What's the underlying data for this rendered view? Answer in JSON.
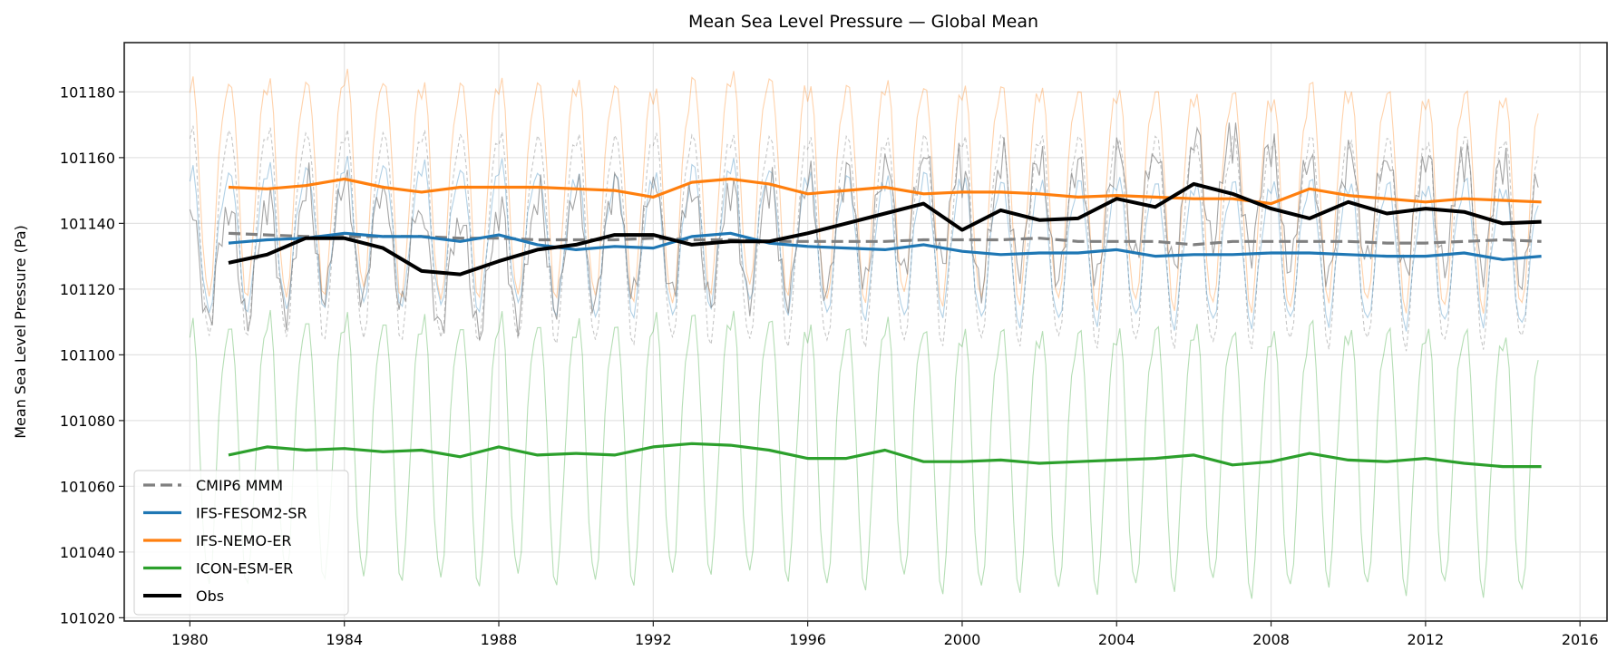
{
  "chart_data": {
    "type": "line",
    "title": "Mean Sea Level Pressure — Global Mean",
    "xlabel": "",
    "ylabel": "Mean Sea Level Pressure (Pa)",
    "xlim": [
      1978.3,
      2016.7
    ],
    "ylim": [
      101019,
      101195
    ],
    "xticks": [
      1980,
      1984,
      1988,
      1992,
      1996,
      2000,
      2004,
      2008,
      2012,
      2016
    ],
    "yticks": [
      101020,
      101040,
      101060,
      101080,
      101100,
      101120,
      101140,
      101160,
      101180
    ],
    "grid": true,
    "legend_position": "lower-left",
    "annual_years": [
      1981,
      1982,
      1983,
      1984,
      1985,
      1986,
      1987,
      1988,
      1989,
      1990,
      1991,
      1992,
      1993,
      1994,
      1995,
      1996,
      1997,
      1998,
      1999,
      2000,
      2001,
      2002,
      2003,
      2004,
      2005,
      2006,
      2007,
      2008,
      2009,
      2010,
      2011,
      2012,
      2013,
      2014,
      2015
    ],
    "monthly_start_year": 1980,
    "monthly_end_year": 2014,
    "series": [
      {
        "name": "CMIP6 MMM",
        "color": "#808080",
        "style": "dashed",
        "annual": [
          101137,
          101136.5,
          101136,
          101136,
          101136,
          101136,
          101135.5,
          101135.5,
          101135,
          101135,
          101135,
          101135.5,
          101135,
          101135,
          101134.5,
          101134.5,
          101134.5,
          101134.5,
          101135,
          101135,
          101135,
          101135.5,
          101134.5,
          101134.5,
          101134.5,
          101133.5,
          101134.5,
          101134.5,
          101134.5,
          101134.5,
          101134,
          101134,
          101134.5,
          101135,
          101134.5
        ],
        "monthly_seasonal_cycle": [
          30,
          31,
          22,
          4,
          -15,
          -28,
          -31,
          -24,
          -8,
          8,
          20,
          27
        ]
      },
      {
        "name": "IFS-FESOM2-SR",
        "color": "#1f77b4",
        "style": "solid",
        "annual": [
          101134,
          101135,
          101135.5,
          101137,
          101136,
          101136,
          101134.5,
          101136.5,
          101133.5,
          101132,
          101133,
          101132.5,
          101136,
          101137,
          101134,
          101133,
          101132.5,
          101132,
          101133.5,
          101131.5,
          101130.5,
          101131,
          101131,
          101132,
          101130,
          101130.5,
          101130.5,
          101131,
          101131,
          101130.5,
          101130,
          101130,
          101131,
          101129,
          101130
        ],
        "monthly_seasonal_cycle": [
          20,
          22,
          14,
          2,
          -10,
          -18,
          -21,
          -16,
          -5,
          5,
          12,
          18
        ]
      },
      {
        "name": "IFS-NEMO-ER",
        "color": "#ff7f0e",
        "style": "solid",
        "annual": [
          101151,
          101150.5,
          101151.5,
          101153.5,
          101151,
          101149.5,
          101151,
          101151,
          101151,
          101150.5,
          101150,
          101148,
          101152.5,
          101153.5,
          101152,
          101149,
          101150,
          101151,
          101149,
          101149.5,
          101149.5,
          101149,
          101148,
          101148.5,
          101148,
          101147.5,
          101147.5,
          101146,
          101150.5,
          101148.5,
          101147.5,
          101146.5,
          101147.5,
          101147,
          101146.5
        ],
        "monthly_seasonal_cycle": [
          30,
          32,
          22,
          3,
          -17,
          -30,
          -33,
          -25,
          -9,
          8,
          21,
          28
        ]
      },
      {
        "name": "ICON-ESM-ER",
        "color": "#2ca02c",
        "style": "solid",
        "annual": [
          101069.5,
          101072,
          101071,
          101071.5,
          101070.5,
          101071,
          101069,
          101072,
          101069.5,
          101070,
          101069.5,
          101072,
          101073,
          101072.5,
          101071,
          101068.5,
          101068.5,
          101071,
          101067.5,
          101067.5,
          101068,
          101067,
          101067.5,
          101068,
          101068.5,
          101069.5,
          101066.5,
          101067.5,
          101070,
          101068,
          101067.5,
          101068.5,
          101067,
          101066,
          101066
        ],
        "monthly_seasonal_cycle": [
          37,
          40,
          28,
          5,
          -20,
          -35,
          -39,
          -30,
          -10,
          10,
          26,
          34
        ]
      },
      {
        "name": "Obs",
        "color": "#000000",
        "style": "solid",
        "annual": [
          101128,
          101130.5,
          101135.5,
          101135.5,
          101132.5,
          101125.5,
          101124.5,
          101128.5,
          101132,
          101133.5,
          101136.5,
          101136.5,
          101133.5,
          101134.5,
          101134.5,
          101137,
          101140,
          101143,
          101146,
          101138,
          101144,
          101141,
          101141.5,
          101147.5,
          101145,
          101152,
          101149,
          101144.5,
          101141.5,
          101146.5,
          101143,
          101144.5,
          101143.5,
          101140,
          101140.5
        ],
        "monthly_seasonal_cycle": [
          14,
          18,
          10,
          -2,
          -10,
          -16,
          -18,
          -14,
          -4,
          4,
          10,
          14
        ]
      }
    ]
  }
}
